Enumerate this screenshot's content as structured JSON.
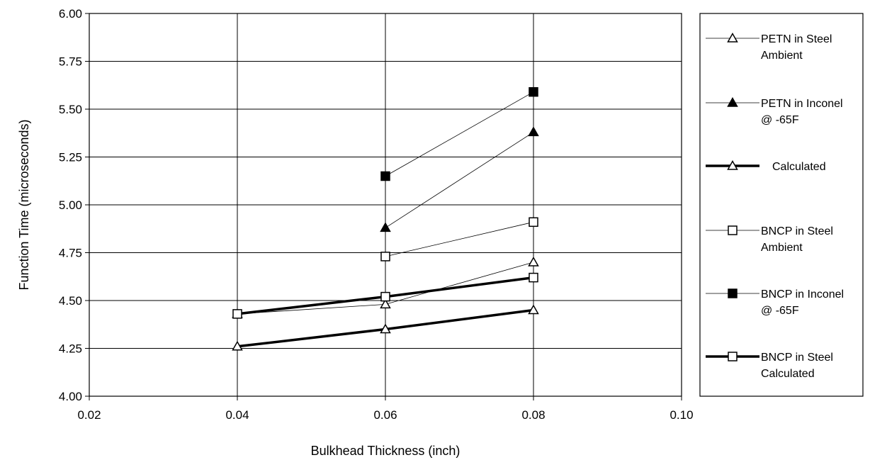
{
  "chart_data": {
    "type": "line",
    "title": "",
    "xlabel": "Bulkhead Thickness (inch)",
    "ylabel": "Function Time (microseconds)",
    "xlim": [
      0.02,
      0.1
    ],
    "ylim": [
      4.0,
      6.0
    ],
    "x_ticks": [
      "0.02",
      "0.04",
      "0.06",
      "0.08",
      "0.10"
    ],
    "y_ticks": [
      "4.00",
      "4.25",
      "4.50",
      "4.75",
      "5.00",
      "5.25",
      "5.50",
      "5.75",
      "6.00"
    ],
    "grid": true,
    "legend_position": "right",
    "series": [
      {
        "legend_lines": [
          "PETN in Steel",
          "Ambient"
        ],
        "marker": "triangle",
        "filled": false,
        "line": "thin",
        "points": [
          [
            0.04,
            4.43
          ],
          [
            0.06,
            4.48
          ],
          [
            0.08,
            4.7
          ]
        ]
      },
      {
        "legend_lines": [
          "PETN in Inconel",
          "@ -65F"
        ],
        "marker": "triangle",
        "filled": true,
        "line": "thin",
        "points": [
          [
            0.06,
            4.88
          ],
          [
            0.08,
            5.38
          ]
        ]
      },
      {
        "legend_lines": [
          "Calculated"
        ],
        "marker": "triangle",
        "filled": false,
        "line": "thick",
        "points": [
          [
            0.04,
            4.26
          ],
          [
            0.06,
            4.35
          ],
          [
            0.08,
            4.45
          ]
        ]
      },
      {
        "legend_lines": [
          "BNCP in Steel",
          "Ambient"
        ],
        "marker": "square",
        "filled": false,
        "line": "thin",
        "points": [
          [
            0.06,
            4.73
          ],
          [
            0.08,
            4.91
          ]
        ]
      },
      {
        "legend_lines": [
          "BNCP in Inconel",
          "@ -65F"
        ],
        "marker": "square",
        "filled": true,
        "line": "thin",
        "points": [
          [
            0.06,
            5.15
          ],
          [
            0.08,
            5.59
          ]
        ]
      },
      {
        "legend_lines": [
          "BNCP in Steel",
          "Calculated"
        ],
        "marker": "square",
        "filled": false,
        "line": "thick",
        "points": [
          [
            0.04,
            4.43
          ],
          [
            0.06,
            4.52
          ],
          [
            0.08,
            4.62
          ]
        ]
      }
    ]
  }
}
